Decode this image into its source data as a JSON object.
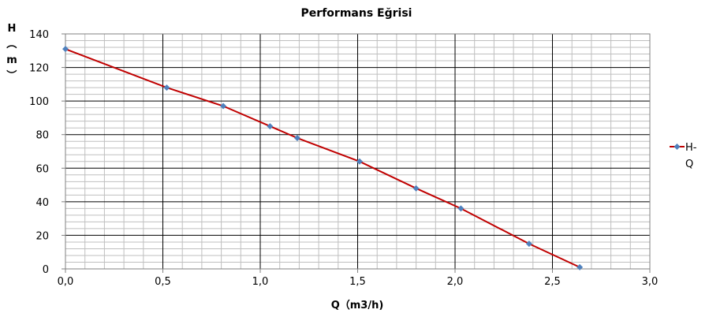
{
  "chart_data": {
    "type": "line",
    "title": "Performans Eğrisi",
    "xlabel": "Q（m3/h)",
    "ylabel_lines": [
      "H",
      "（",
      "m",
      "）"
    ],
    "xlim": [
      0,
      3
    ],
    "ylim": [
      0,
      140
    ],
    "x_ticks": [
      "0,0",
      "0,5",
      "1,0",
      "1,5",
      "2,0",
      "2,5",
      "3,0"
    ],
    "y_ticks": [
      "0",
      "20",
      "40",
      "60",
      "80",
      "100",
      "120",
      "140"
    ],
    "grid": true,
    "legend": {
      "placement": "right",
      "label_lines": [
        "H-",
        "Q"
      ]
    },
    "series": [
      {
        "name": "H-Q",
        "color": "#C00000",
        "marker_color": "#4F81BD",
        "x": [
          0.0,
          0.52,
          0.81,
          1.05,
          1.19,
          1.51,
          1.8,
          2.03,
          2.38,
          2.64
        ],
        "y": [
          131,
          108,
          97,
          85,
          78,
          64,
          48,
          36,
          15,
          1
        ]
      }
    ],
    "colors": {
      "major_grid": "#000000",
      "minor_grid": "#BFBFBF",
      "plot_border": "#808080"
    }
  }
}
